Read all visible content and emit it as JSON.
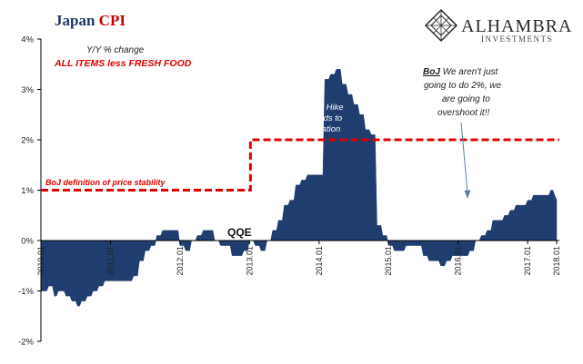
{
  "header": {
    "title_part1": "Japan ",
    "title_part2": "CPI",
    "subtitle": "Y/Y % change",
    "series_label": "ALL ITEMS less FRESH FOOD"
  },
  "logo": {
    "name": "ALHAMBRA",
    "tagline": "INVESTMENTS"
  },
  "annotations": {
    "boj_definition": "BoJ definition of price stability",
    "qqe": "QQE",
    "tax_hike_line1": "Tax Hike",
    "tax_hike_line2": "Adds to",
    "tax_hike_line3": "Inflation",
    "boj_quote_lead": "BoJ",
    "boj_quote_line1": " We aren't just",
    "boj_quote_line2": "going to do 2%, we",
    "boj_quote_line3": "are going to",
    "boj_quote_line4": "overshoot it!!"
  },
  "colors": {
    "area": "#1f3d6e",
    "target_line": "#e00000",
    "axis": "#000000"
  },
  "chart_data": {
    "type": "area",
    "title": "Japan CPI",
    "subtitle": "Y/Y % change",
    "ylim": [
      -2,
      4
    ],
    "ytick_labels": [
      "4%",
      "3%",
      "2%",
      "1%",
      "0%",
      "-1%",
      "-2%"
    ],
    "ytick_values": [
      4,
      3,
      2,
      1,
      0,
      -1,
      -2
    ],
    "xtick_labels": [
      "2010.01",
      "2011.01",
      "2012.01",
      "2013.01",
      "2014.01",
      "2015.01",
      "2016.01",
      "2017.01",
      "2018.01"
    ],
    "x_start": "2010.01",
    "series": [
      {
        "name": "ALL ITEMS less FRESH FOOD",
        "values": [
          -1.0,
          -1.0,
          -1.0,
          -1.0,
          -0.9,
          -0.9,
          -0.9,
          -1.1,
          -1.1,
          -1.0,
          -1.0,
          -1.0,
          -1.0,
          -1.1,
          -1.1,
          -1.1,
          -1.2,
          -1.2,
          -1.2,
          -1.3,
          -1.3,
          -1.2,
          -1.2,
          -1.2,
          -1.1,
          -1.1,
          -1.1,
          -1.0,
          -1.0,
          -1.0,
          -0.9,
          -0.9,
          -0.9,
          -0.8,
          -0.8,
          -0.8,
          -0.8,
          -0.8,
          -0.8,
          -0.8,
          -0.8,
          -0.8,
          -0.8,
          -0.8,
          -0.8,
          -0.8,
          -0.8,
          -0.8,
          -0.7,
          -0.7,
          -0.7,
          -0.4,
          -0.4,
          -0.4,
          -0.2,
          -0.2,
          -0.2,
          -0.1,
          -0.1,
          -0.1,
          0.1,
          0.1,
          0.1,
          0.2,
          0.2,
          0.2,
          0.2,
          0.2,
          0.2,
          0.2,
          0.2,
          0.2,
          -0.1,
          -0.1,
          -0.1,
          -0.2,
          -0.2,
          -0.2,
          0.0,
          0.0,
          0.0,
          0.1,
          0.1,
          0.1,
          0.2,
          0.2,
          0.2,
          0.2,
          0.2,
          0.2,
          0.0,
          0.0,
          0.0,
          -0.1,
          -0.1,
          -0.1,
          -0.1,
          -0.1,
          -0.1,
          -0.3,
          -0.3,
          -0.3,
          -0.3,
          -0.3,
          -0.3,
          -0.2,
          -0.2,
          -0.2,
          0.0,
          0.0,
          0.0,
          -0.1,
          -0.1,
          -0.1,
          -0.2,
          -0.2,
          -0.2,
          0.0,
          0.0,
          0.0,
          0.2,
          0.2,
          0.2,
          0.4,
          0.4,
          0.4,
          0.7,
          0.7,
          0.7,
          0.8,
          0.8,
          0.8,
          1.1,
          1.1,
          1.1,
          1.2,
          1.2,
          1.2,
          1.3,
          1.3,
          1.3,
          1.3,
          1.3,
          1.3,
          1.3,
          1.3,
          1.3,
          3.2,
          3.2,
          3.2,
          3.3,
          3.3,
          3.3,
          3.4,
          3.4,
          3.4,
          3.1,
          3.1,
          3.1,
          2.9,
          2.9,
          2.9,
          2.7,
          2.7,
          2.7,
          2.5,
          2.5,
          2.5,
          2.2,
          2.2,
          2.2,
          2.1,
          2.1,
          2.1,
          0.3,
          0.3,
          0.3,
          0.1,
          0.1,
          0.1,
          -0.1,
          -0.1,
          -0.1,
          -0.2,
          -0.2,
          -0.2,
          -0.2,
          -0.2,
          -0.2,
          -0.1,
          -0.1,
          -0.1,
          -0.1,
          -0.1,
          -0.1,
          -0.1,
          -0.1,
          -0.1,
          -0.3,
          -0.3,
          -0.3,
          -0.4,
          -0.4,
          -0.4,
          -0.4,
          -0.4,
          -0.4,
          -0.5,
          -0.5,
          -0.5,
          -0.4,
          -0.4,
          -0.4,
          -0.3,
          -0.3,
          -0.3,
          -0.3,
          -0.3,
          -0.3,
          -0.3,
          -0.3,
          -0.3,
          -0.2,
          -0.2,
          -0.2,
          0.0,
          0.0,
          0.0,
          0.1,
          0.1,
          0.1,
          0.2,
          0.2,
          0.2,
          0.4,
          0.4,
          0.4,
          0.4,
          0.4,
          0.4,
          0.5,
          0.5,
          0.5,
          0.6,
          0.6,
          0.6,
          0.7,
          0.7,
          0.7,
          0.7,
          0.7,
          0.7,
          0.8,
          0.8,
          0.8,
          0.9,
          0.9,
          0.9,
          0.9,
          0.9,
          0.9,
          0.9,
          0.9,
          0.9,
          1.0,
          1.0,
          0.9,
          0.8
        ]
      }
    ],
    "reference_line": {
      "name": "BoJ definition of price stability",
      "segments": [
        {
          "from": "2010.01",
          "to": "2013.01",
          "value": 1
        },
        {
          "from": "2013.01",
          "to": "2018.03",
          "value": 2
        }
      ]
    },
    "grid": false,
    "legend": "none"
  }
}
